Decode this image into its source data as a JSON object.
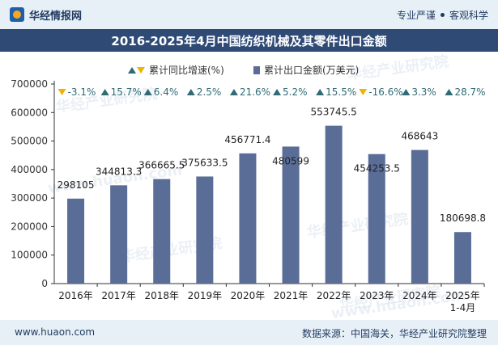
{
  "header": {
    "brand": "华经情报网",
    "tag1": "专业严谨",
    "tag2": "客观科学"
  },
  "title": "2016-2025年4月中国纺织机械及其零件出口金额",
  "legend": {
    "growth_label": "累计同比增速(%)",
    "amount_label": "累计出口金额(万美元)"
  },
  "watermarks": [
    "华经产业研究院",
    "www.huaon.com",
    "华经产业研究院",
    "华经产业研究院",
    "华经产业研究院",
    "华经产业研究院",
    "www.huaon.com"
  ],
  "footer": {
    "site": "www.huaon.com",
    "source": "数据来源：中国海关，华经产业研究院整理"
  },
  "colors": {
    "bar": "#5a6d97",
    "up_arrow": "#2f6b77",
    "down_arrow": "#f0b400"
  },
  "chart_data": {
    "type": "bar",
    "categories": [
      "2016年",
      "2017年",
      "2018年",
      "2019年",
      "2020年",
      "2021年",
      "2022年",
      "2023年",
      "2024年",
      "2025年\n1-4月"
    ],
    "series": [
      {
        "name": "累计出口金额(万美元)",
        "values": [
          298105,
          344813.3,
          366665.5,
          375633.5,
          456771.4,
          480599,
          553745.5,
          454253.5,
          468643,
          180698.8
        ],
        "labels": [
          "298105",
          "344813.3",
          "366665.5",
          "375633.5",
          "456771.4",
          "480599",
          "553745.5",
          "454253.5",
          "468643",
          "180698.8"
        ]
      },
      {
        "name": "累计同比增速(%)",
        "values": [
          -3.1,
          15.7,
          6.4,
          2.5,
          21.6,
          5.2,
          15.5,
          -16.6,
          3.3,
          28.7
        ],
        "labels": [
          "-3.1%",
          "15.7%",
          "6.4%",
          "2.5%",
          "21.6%",
          "5.2%",
          "15.5%",
          "-16.6%",
          "3.3%",
          "28.7%"
        ]
      }
    ],
    "ylim": [
      0,
      700000
    ],
    "yticks": [
      "0",
      "100000",
      "200000",
      "300000",
      "400000",
      "500000",
      "600000",
      "700000"
    ],
    "grid": false
  }
}
